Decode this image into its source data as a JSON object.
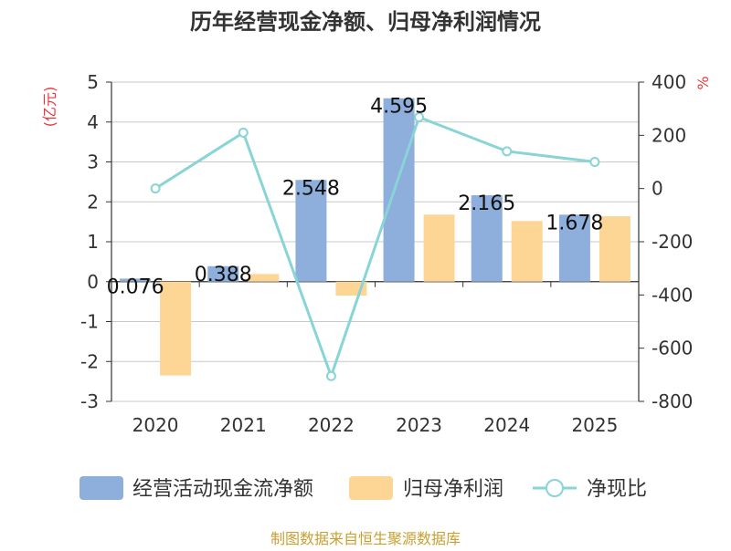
{
  "chart_data": {
    "type": "bar",
    "title": "历年经营现金净额、归母净利润情况",
    "categories": [
      "2020",
      "2021",
      "2022",
      "2023",
      "2024",
      "2025"
    ],
    "y_left": {
      "label": "(亿元)",
      "ylim": [
        -3,
        5
      ],
      "ticks": [
        5,
        4,
        3,
        2,
        1,
        0,
        -1,
        -2,
        -3
      ]
    },
    "y_right": {
      "label": "%",
      "ylim": [
        -800,
        400
      ],
      "ticks": [
        400,
        200,
        0,
        -200,
        -400,
        -600,
        -800
      ]
    },
    "series": [
      {
        "name": "经营活动现金流净额",
        "type": "bar",
        "axis": "left",
        "color": "#8eaedb",
        "values": [
          0.076,
          0.388,
          2.548,
          4.595,
          2.165,
          1.678
        ],
        "labels": [
          "0.076",
          "0.388",
          "2.548",
          "4.595",
          "2.165",
          "1.678"
        ]
      },
      {
        "name": "归母净利润",
        "type": "bar",
        "axis": "left",
        "color": "#fdd595",
        "values": [
          -2.35,
          0.19,
          -0.35,
          1.68,
          1.52,
          1.64
        ]
      },
      {
        "name": "净现比",
        "type": "line",
        "axis": "right",
        "color": "#88d4d6",
        "values": [
          0,
          210,
          -705,
          268,
          140,
          100
        ]
      }
    ],
    "grid": true,
    "legend_position": "bottom"
  },
  "source": "制图数据来自恒生聚源数据库"
}
